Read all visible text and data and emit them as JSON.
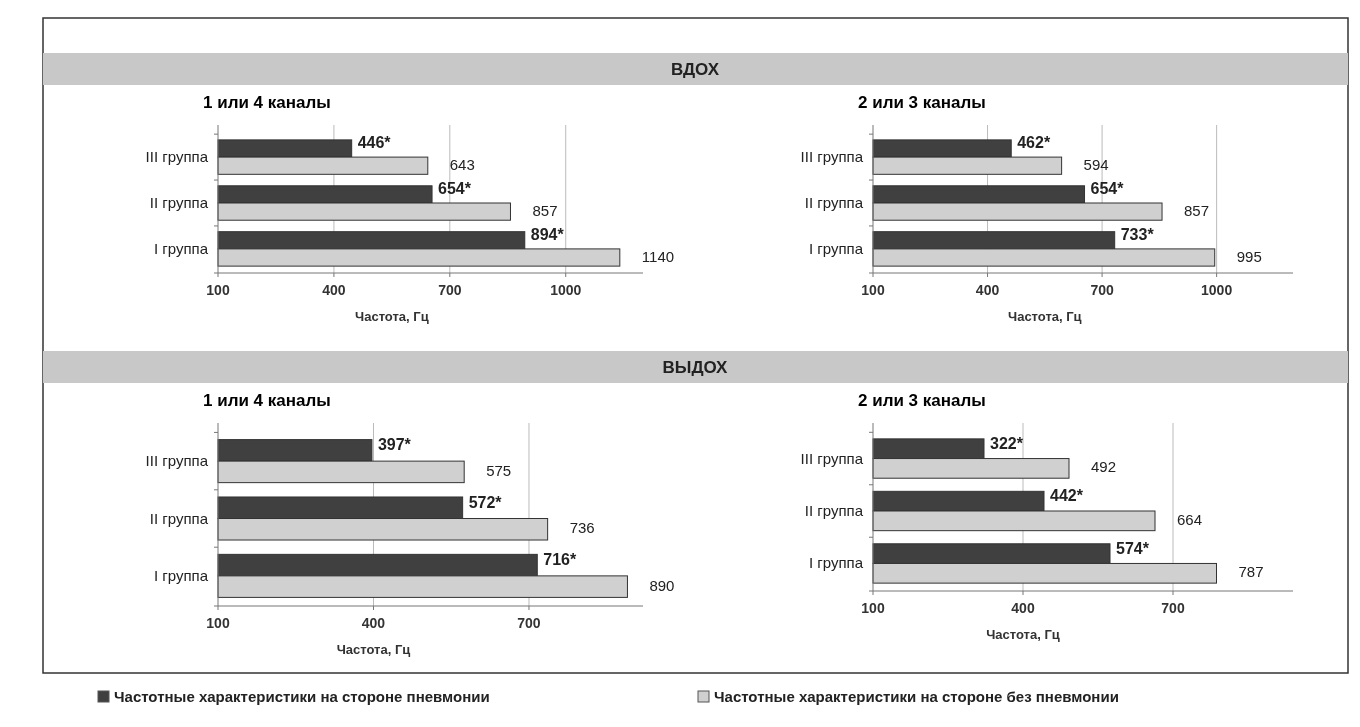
{
  "chart_data": [
    {
      "type": "bar",
      "orientation": "horizontal",
      "title": "1 или 4 каналы",
      "annotations": [
        "ВДОХ"
      ],
      "xlabel": "Частота, Гц",
      "categories": [
        "III группа",
        "II группа",
        "I группа"
      ],
      "xlim": [
        100,
        1200
      ],
      "xticks": [
        100,
        400,
        700,
        1000
      ],
      "grid": "x",
      "legend": "bottom",
      "series": [
        {
          "name": "Частотные характеристики на стороне пневмонии",
          "color": "#404040",
          "values": [
            446,
            654,
            894
          ],
          "value_labels": [
            "446*",
            "654*",
            "894*"
          ]
        },
        {
          "name": "Частотные характеристики на стороне без пневмонии",
          "color": "#d0d0d0",
          "values": [
            643,
            857,
            1140
          ],
          "value_labels": [
            "643",
            "857",
            "1140"
          ]
        }
      ]
    },
    {
      "type": "bar",
      "orientation": "horizontal",
      "title": "2 или 3 каналы",
      "xlabel": "Частота, Гц",
      "categories": [
        "III группа",
        "II группа",
        "I группа"
      ],
      "xlim": [
        100,
        1200
      ],
      "xticks": [
        100,
        400,
        700,
        1000
      ],
      "grid": "x",
      "series": [
        {
          "color": "#404040",
          "values": [
            462,
            654,
            733
          ],
          "value_labels": [
            "462*",
            "654*",
            "733*"
          ]
        },
        {
          "color": "#d0d0d0",
          "values": [
            594,
            857,
            995
          ],
          "value_labels": [
            "594",
            "857",
            "995"
          ]
        }
      ]
    },
    {
      "type": "bar",
      "orientation": "horizontal",
      "title": "1 или 4 каналы",
      "annotations": [
        "ВЫДОХ"
      ],
      "xlabel": "Частота, Гц",
      "categories": [
        "III группа",
        "II группа",
        "I группа"
      ],
      "xlim": [
        100,
        920
      ],
      "xticks": [
        100,
        400,
        700
      ],
      "grid": "x",
      "series": [
        {
          "color": "#404040",
          "values": [
            397,
            572,
            716
          ],
          "value_labels": [
            "397*",
            "572*",
            "716*"
          ]
        },
        {
          "color": "#d0d0d0",
          "values": [
            575,
            736,
            890
          ],
          "value_labels": [
            "575",
            "736",
            "890"
          ]
        }
      ]
    },
    {
      "type": "bar",
      "orientation": "horizontal",
      "title": "2 или 3 каналы",
      "xlabel": "Частота, Гц",
      "categories": [
        "III группа",
        "II группа",
        "I группа"
      ],
      "xlim": [
        100,
        940
      ],
      "xticks": [
        100,
        400,
        700
      ],
      "grid": "x",
      "series": [
        {
          "color": "#404040",
          "values": [
            322,
            442,
            574
          ],
          "value_labels": [
            "322*",
            "442*",
            "574*"
          ]
        },
        {
          "color": "#d0d0d0",
          "values": [
            492,
            664,
            787
          ],
          "value_labels": [
            "492",
            "664",
            "787"
          ]
        }
      ]
    }
  ]
}
